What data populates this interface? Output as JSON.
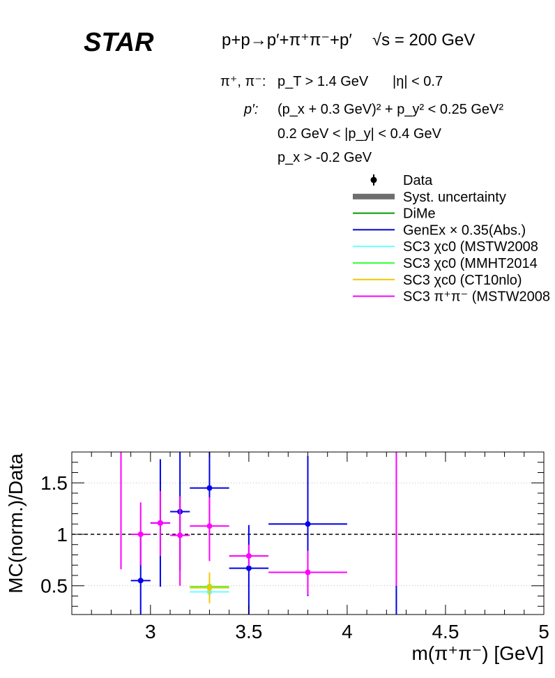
{
  "header": {
    "experiment": "STAR",
    "reaction": "p+p→p′+π⁺π⁻+p′",
    "energy": "√s = 200 GeV"
  },
  "cuts": {
    "pion_label": "π⁺, π⁻:",
    "pion_pt": "p_T > 1.4 GeV",
    "pion_eta": "|η| < 0.7",
    "proton_label": "p′:",
    "proton_line1": "(p_x + 0.3 GeV)² + p_y² < 0.25 GeV²",
    "proton_line2": "0.2 GeV < |p_y| < 0.4 GeV",
    "proton_line3": "p_x > -0.2 GeV"
  },
  "legend": {
    "placement": "top-right",
    "entries": [
      {
        "label": "Data",
        "style": "marker",
        "color": "#000000"
      },
      {
        "label": "Syst. uncertainty",
        "style": "band",
        "color": "#6e6e6e"
      },
      {
        "label": "DiMe",
        "style": "line",
        "color": "#009900"
      },
      {
        "label": "GenEx × 0.35(Abs.)",
        "style": "line",
        "color": "#0000cc"
      },
      {
        "label": "SC3 χc0 (MSTW2008",
        "style": "line",
        "color": "#66ffff"
      },
      {
        "label": "SC3 χc0 (MMHT2014",
        "style": "line",
        "color": "#33ff33"
      },
      {
        "label": "SC3 χc0 (CT10nlo)",
        "style": "line",
        "color": "#f0c800"
      },
      {
        "label": "SC3 π⁺π⁻ (MSTW2008",
        "style": "line",
        "color": "#ff00ff"
      }
    ]
  },
  "chart_data": {
    "type": "scatter",
    "xlabel": "m(π⁺π⁻) [GeV]",
    "ylabel": "MC(norm.)/Data",
    "xlim": [
      2.6,
      5.0
    ],
    "ylim": [
      0.22,
      1.8
    ],
    "x_ticks": [
      3,
      3.5,
      4,
      4.5,
      5
    ],
    "x_tick_labels": [
      "3",
      "3.5",
      "4",
      "4.5",
      "5"
    ],
    "y_ticks": [
      0.5,
      1,
      1.5
    ],
    "y_tick_labels": [
      "0.5",
      "1",
      "1.5"
    ],
    "reference_line": 1.0,
    "grid": "horizontal dotted",
    "series": [
      {
        "name": "GenEx × 0.35(Abs.)",
        "color": "#0000ee",
        "points": [
          {
            "x": 2.95,
            "xlo": 2.9,
            "xhi": 3.0,
            "y": 0.55,
            "ylo": 0.22,
            "yhi": 0.98
          },
          {
            "x": 3.05,
            "xlo": 3.0,
            "xhi": 3.1,
            "y": 1.11,
            "ylo": 0.49,
            "yhi": 1.73
          },
          {
            "x": 3.15,
            "xlo": 3.1,
            "xhi": 3.2,
            "y": 1.22,
            "ylo": 0.65,
            "yhi": 1.8
          },
          {
            "x": 3.3,
            "xlo": 3.2,
            "xhi": 3.4,
            "y": 1.45,
            "ylo": 0.98,
            "yhi": 1.8
          },
          {
            "x": 3.5,
            "xlo": 3.4,
            "xhi": 3.6,
            "y": 0.67,
            "ylo": 0.22,
            "yhi": 1.09
          },
          {
            "x": 3.8,
            "xlo": 3.6,
            "xhi": 4.0,
            "y": 1.1,
            "ylo": 0.4,
            "yhi": 1.76
          },
          {
            "x": 4.25,
            "xlo": 4.25,
            "xhi": 4.25,
            "y": null,
            "ylo": 0.22,
            "yhi": 0.5
          }
        ]
      },
      {
        "name": "SC3 χc0 (MSTW2008",
        "color": "#66ffff",
        "points": [
          {
            "x": 3.3,
            "xlo": 3.2,
            "xhi": 3.4,
            "y": 0.44,
            "ylo": 0.36,
            "yhi": 0.52
          }
        ]
      },
      {
        "name": "SC3 χc0 (MMHT2014",
        "color": "#33ff33",
        "points": [
          {
            "x": 3.3,
            "xlo": 3.2,
            "xhi": 3.4,
            "y": 0.49,
            "ylo": 0.4,
            "yhi": 0.58
          }
        ]
      },
      {
        "name": "SC3 χc0 (CT10nlo)",
        "color": "#f0c800",
        "points": [
          {
            "x": 3.3,
            "xlo": 3.2,
            "xhi": 3.4,
            "y": 0.48,
            "ylo": 0.33,
            "yhi": 0.63
          }
        ]
      },
      {
        "name": "SC3 π⁺π⁻ (MSTW2008",
        "color": "#ff00ff",
        "points": [
          {
            "x": 2.85,
            "xlo": 2.85,
            "xhi": 2.85,
            "y": null,
            "ylo": 0.66,
            "yhi": 1.8
          },
          {
            "x": 2.95,
            "xlo": 2.9,
            "xhi": 3.0,
            "y": 1.0,
            "ylo": 0.7,
            "yhi": 1.31
          },
          {
            "x": 3.05,
            "xlo": 3.0,
            "xhi": 3.1,
            "y": 1.11,
            "ylo": 0.79,
            "yhi": 1.42
          },
          {
            "x": 3.15,
            "xlo": 3.1,
            "xhi": 3.2,
            "y": 0.99,
            "ylo": 0.5,
            "yhi": 1.37
          },
          {
            "x": 3.3,
            "xlo": 3.2,
            "xhi": 3.4,
            "y": 1.08,
            "ylo": 0.74,
            "yhi": 1.36
          },
          {
            "x": 3.5,
            "xlo": 3.4,
            "xhi": 3.6,
            "y": 0.79,
            "ylo": 0.69,
            "yhi": 0.9
          },
          {
            "x": 3.8,
            "xlo": 3.6,
            "xhi": 4.0,
            "y": 0.63,
            "ylo": 0.41,
            "yhi": 0.84
          },
          {
            "x": 4.25,
            "xlo": 4.25,
            "xhi": 4.25,
            "y": null,
            "ylo": 0.5,
            "yhi": 1.8
          }
        ]
      }
    ]
  }
}
